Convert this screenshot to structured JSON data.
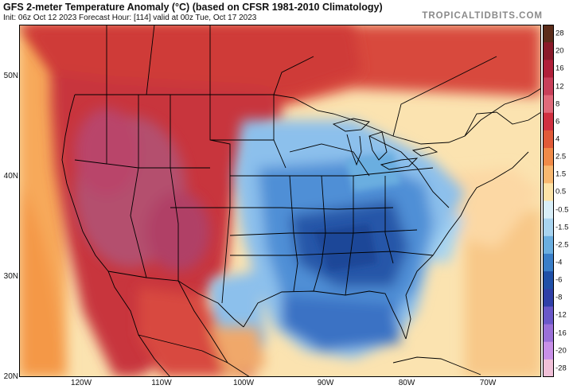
{
  "header": {
    "title": "GFS 2-meter Temperature Anomaly (°C) (based on CFSR 1981-2010 Climatology)",
    "subtitle": "Init: 06z Oct 12 2023   Forecast Hour: [114]   valid at 00z Tue, Oct 17 2023",
    "brand": "TROPICALTIDBITS.COM"
  },
  "axes": {
    "lat_labels": [
      "50N",
      "40N",
      "30N",
      "20N"
    ],
    "lon_labels": [
      "120W",
      "110W",
      "100W",
      "90W",
      "80W",
      "70W"
    ]
  },
  "colorbar": {
    "labels": [
      "28",
      "20",
      "16",
      "12",
      "8",
      "6",
      "4",
      "2.5",
      "1.5",
      "0.5",
      "-0.5",
      "-1.5",
      "-2.5",
      "-4",
      "-6",
      "-8",
      "-12",
      "-16",
      "-20",
      "-28"
    ],
    "colors": [
      "#5c2c1a",
      "#8a1a2a",
      "#b0203a",
      "#c8405a",
      "#e06a7a",
      "#d03040",
      "#e05a38",
      "#f08a48",
      "#f8b870",
      "#fde4a8",
      "#d8eef8",
      "#a8d4f0",
      "#6aaee0",
      "#3a7ec8",
      "#2050a8",
      "#3040a8",
      "#6a58c8",
      "#9a70d8",
      "#c890e8",
      "#f0c0d8"
    ]
  },
  "colors": {
    "ocean_warm": "#f6b26b",
    "ocean_neutral": "#fbe3b0",
    "land_hot": "#c0303c",
    "land_very_hot": "#b04a6e",
    "cold_light": "#9ccbef",
    "cold_mid": "#4f8fd6",
    "cold_deep": "#1f4fa6",
    "border": "#000000"
  }
}
